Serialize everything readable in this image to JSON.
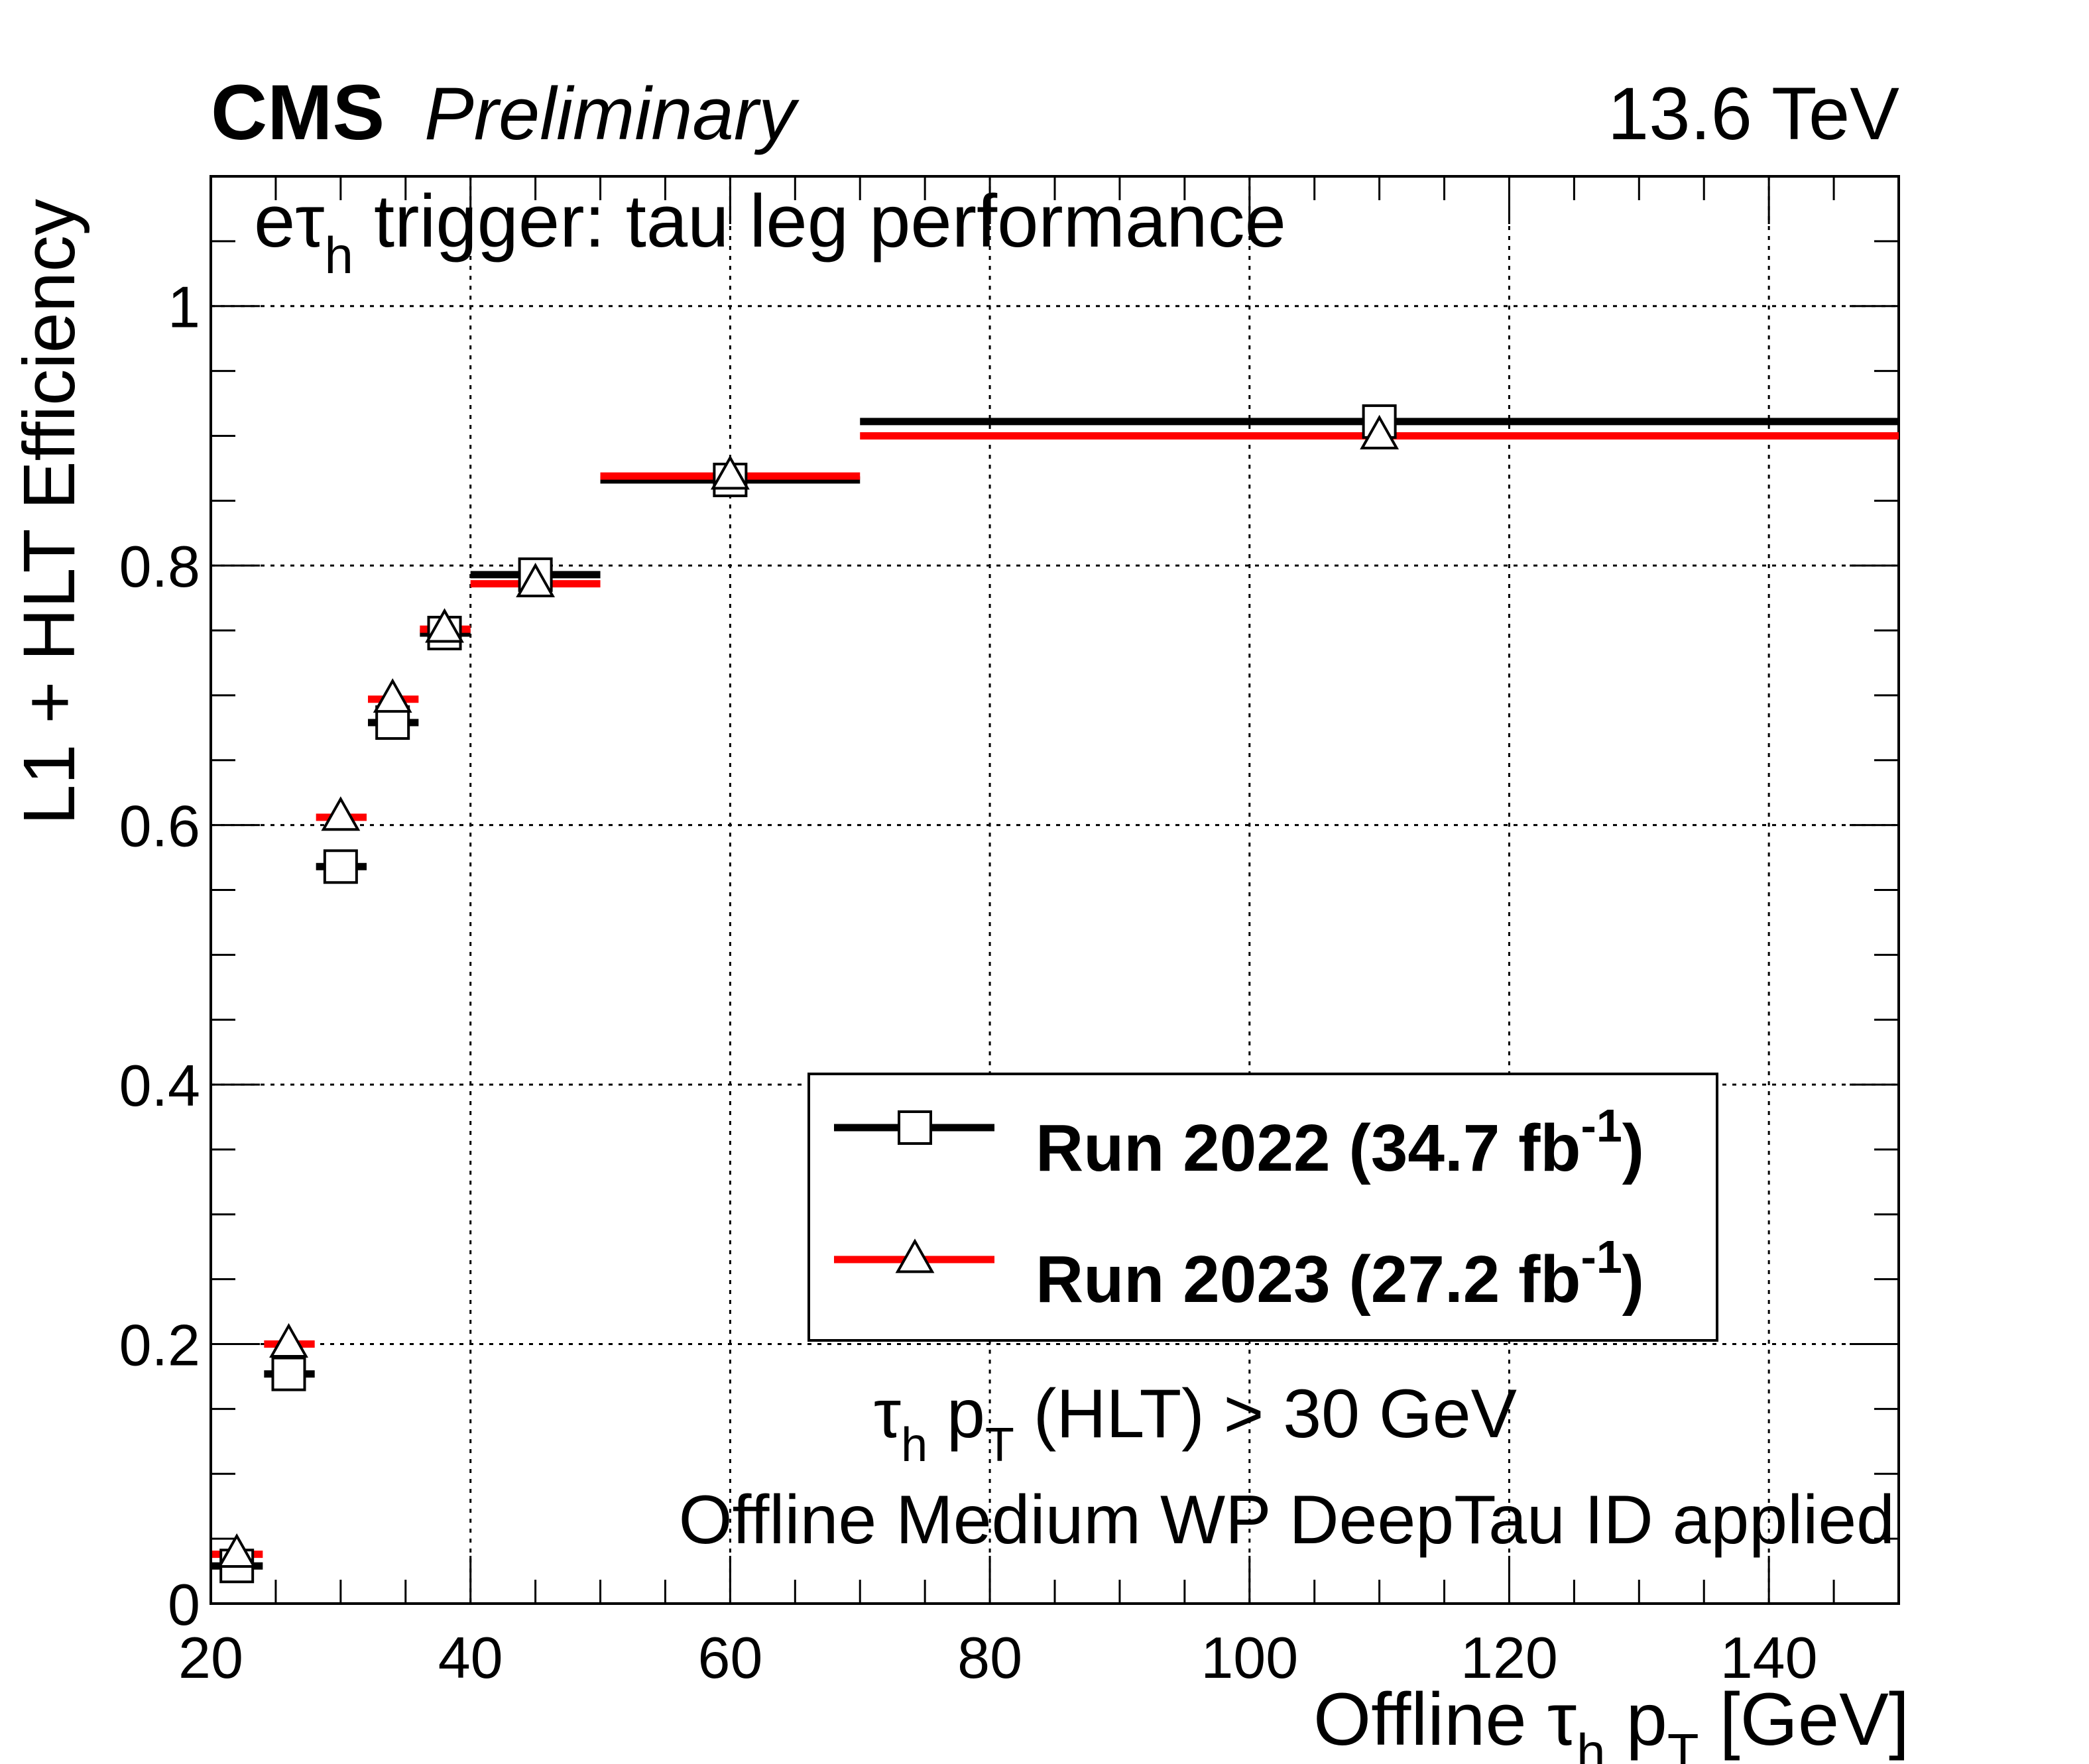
{
  "header": {
    "experiment": "CMS",
    "status": "Preliminary",
    "energy": "13.6 TeV"
  },
  "annotations": {
    "trigger_prefix": "eτ",
    "trigger_sub": "h",
    "trigger_suffix": " trigger: tau leg performance",
    "cut_tau": "τ",
    "cut_tau_sub": "h",
    "cut_p": " p",
    "cut_p_sub": "T",
    "cut_rest": " (HLT) > 30 GeV",
    "id_line": "Offline Medium WP DeepTau ID applied"
  },
  "axes": {
    "ylabel": "L1 + HLT Efficiency",
    "xlabel_prefix": "Offline ",
    "xlabel_tau": "τ",
    "xlabel_tau_sub": "h",
    "xlabel_p": " p",
    "xlabel_p_sub": "T",
    "xlabel_unit": " [GeV]"
  },
  "legend": {
    "entries": [
      {
        "prefix": "Run 2022 (34.7 fb",
        "sup": "-1",
        "suffix": ")"
      },
      {
        "prefix": "Run 2023 (27.2 fb",
        "sup": "-1",
        "suffix": ")"
      }
    ]
  },
  "chart_data": {
    "type": "scatter",
    "xlabel": "Offline τh pT [GeV]",
    "ylabel": "L1 + HLT Efficiency",
    "xlim": [
      20,
      150
    ],
    "ylim": [
      0,
      1.1
    ],
    "x_ticks": [
      20,
      40,
      60,
      80,
      100,
      120,
      140
    ],
    "y_ticks": [
      0,
      0.2,
      0.4,
      0.6,
      0.8,
      1
    ],
    "x_tick_labels": [
      "20",
      "40",
      "60",
      "80",
      "100",
      "120",
      "140"
    ],
    "y_tick_labels": [
      "0",
      "0.2",
      "0.4",
      "0.6",
      "0.8",
      "1"
    ],
    "grid": true,
    "legend_position": "lower-right",
    "series": [
      {
        "name": "Run 2022 (34.7 fb-1)",
        "color": "#000000",
        "marker": "open-square",
        "bins": [
          {
            "xlow": 20,
            "xhigh": 24,
            "x": 22,
            "y": 0.029
          },
          {
            "xlow": 24,
            "xhigh": 28,
            "x": 26,
            "y": 0.177
          },
          {
            "xlow": 28,
            "xhigh": 32,
            "x": 30,
            "y": 0.568
          },
          {
            "xlow": 32,
            "xhigh": 36,
            "x": 34,
            "y": 0.679
          },
          {
            "xlow": 36,
            "xhigh": 40,
            "x": 38,
            "y": 0.748
          },
          {
            "xlow": 40,
            "xhigh": 50,
            "x": 45,
            "y": 0.793
          },
          {
            "xlow": 50,
            "xhigh": 70,
            "x": 60,
            "y": 0.866
          },
          {
            "xlow": 70,
            "xhigh": 150,
            "x": 110,
            "y": 0.911
          }
        ]
      },
      {
        "name": "Run 2023 (27.2 fb-1)",
        "color": "#ff0000",
        "marker": "open-triangle",
        "bins": [
          {
            "xlow": 20,
            "xhigh": 24,
            "x": 22,
            "y": 0.038
          },
          {
            "xlow": 24,
            "xhigh": 28,
            "x": 26,
            "y": 0.2
          },
          {
            "xlow": 28,
            "xhigh": 32,
            "x": 30,
            "y": 0.606
          },
          {
            "xlow": 32,
            "xhigh": 36,
            "x": 34,
            "y": 0.697
          },
          {
            "xlow": 36,
            "xhigh": 40,
            "x": 38,
            "y": 0.751
          },
          {
            "xlow": 40,
            "xhigh": 50,
            "x": 45,
            "y": 0.786
          },
          {
            "xlow": 50,
            "xhigh": 70,
            "x": 60,
            "y": 0.869
          },
          {
            "xlow": 70,
            "xhigh": 150,
            "x": 110,
            "y": 0.9
          }
        ]
      }
    ]
  }
}
